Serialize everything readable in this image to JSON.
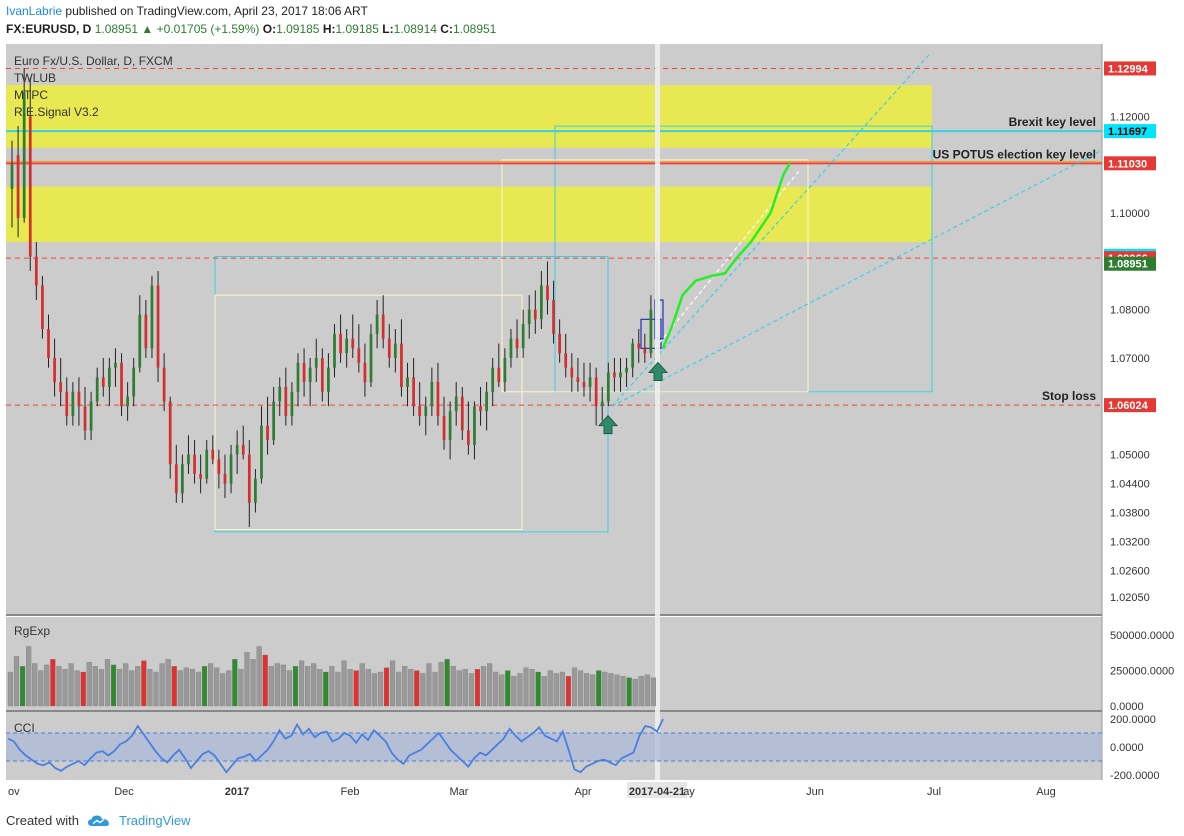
{
  "header": {
    "author": "IvanLabrie",
    "published": "published on TradingView.com, April 23, 2017 18:06 ART",
    "symbol": "FX:EURUSD, D",
    "last": "1.08951",
    "change": "+0.01705 (+1.59%)",
    "open_label": "O:",
    "open": "1.09185",
    "high_label": "H:",
    "high": "1.09185",
    "low_label": "L:",
    "low": "1.08914",
    "close_label": "C:",
    "close": "1.08951"
  },
  "legend": {
    "instrument": "Euro Fx/U.S. Dollar, D, FXCM",
    "indicators": [
      "TWLUB",
      "MTPC",
      "R.E.Signal V3.2"
    ]
  },
  "footer": {
    "created_with": "Created with",
    "brand": "TradingView"
  },
  "colors": {
    "up": "#2e7d32",
    "down": "#d32f2f",
    "zone": "#ecec3c",
    "cyan": "#37d1e1",
    "key_red": "#f44336",
    "green_path": "#24ef24",
    "cci": "#4a7fe0"
  },
  "chart_data": [
    {
      "type": "candlestick",
      "title": "Euro Fx/U.S. Dollar, D, FXCM",
      "y_ticks": [
        1.12,
        1.11,
        1.1,
        1.08,
        1.07,
        1.05,
        1.044,
        1.038,
        1.032,
        1.026,
        1.0205
      ],
      "y_tick_labels": [
        "1.12000",
        "1.11000",
        "1.10000",
        "1.08000",
        "1.07000",
        "1.05000",
        "1.04400",
        "1.03800",
        "1.03200",
        "1.02600",
        "1.02050"
      ],
      "x_tick_labels": [
        "ov",
        "Dec",
        "2017",
        "Feb",
        "Mar",
        "Apr",
        "2017-04-21",
        "ay",
        "Jun",
        "Jul",
        "Aug"
      ],
      "price_labels": [
        {
          "text": "1.12994",
          "value": 1.12994,
          "kind": "red"
        },
        {
          "text": "1.11697",
          "value": 1.11697,
          "kind": "cyan"
        },
        {
          "text": "1.11030",
          "value": 1.1103,
          "kind": "red"
        },
        {
          "text": "1.09115",
          "value": 1.09115,
          "kind": "cyan"
        },
        {
          "text": "1.09066",
          "value": 1.09066,
          "kind": "red"
        },
        {
          "text": "1.08951",
          "value": 1.08951,
          "kind": "green"
        },
        {
          "text": "1.06024",
          "value": 1.06024,
          "kind": "red"
        }
      ],
      "annotations": [
        {
          "text": "Brexit key level",
          "value": 1.11697
        },
        {
          "text": "US POTUS election key level",
          "value": 1.1103
        },
        {
          "text": "Stop loss",
          "value": 1.06024
        }
      ],
      "zones": [
        [
          1.1135,
          1.1265
        ],
        [
          1.094,
          1.1055
        ]
      ],
      "lines": [
        {
          "value": 1.12994,
          "style": "dashed",
          "color": "red"
        },
        {
          "value": 1.11697,
          "style": "solid",
          "color": "cyan"
        },
        {
          "value": 1.1103,
          "style": "solid",
          "color": "red"
        },
        {
          "value": 1.09066,
          "style": "dashed",
          "color": "red"
        },
        {
          "value": 1.06024,
          "style": "dashed",
          "color": "red"
        }
      ],
      "candles": [
        [
          1.105,
          1.115,
          1.097,
          1.11
        ],
        [
          1.112,
          1.118,
          1.095,
          1.099
        ],
        [
          1.099,
          1.13,
          1.098,
          1.125
        ],
        [
          1.12,
          1.128,
          1.088,
          1.091
        ],
        [
          1.091,
          1.094,
          1.082,
          1.085
        ],
        [
          1.085,
          1.087,
          1.074,
          1.076
        ],
        [
          1.076,
          1.079,
          1.068,
          1.07
        ],
        [
          1.07,
          1.074,
          1.062,
          1.065
        ],
        [
          1.065,
          1.07,
          1.06,
          1.063
        ],
        [
          1.063,
          1.066,
          1.056,
          1.058
        ],
        [
          1.058,
          1.065,
          1.056,
          1.063
        ],
        [
          1.063,
          1.066,
          1.056,
          1.06
        ],
        [
          1.06,
          1.064,
          1.053,
          1.055
        ],
        [
          1.055,
          1.063,
          1.053,
          1.061
        ],
        [
          1.061,
          1.068,
          1.06,
          1.066
        ],
        [
          1.066,
          1.07,
          1.062,
          1.064
        ],
        [
          1.064,
          1.07,
          1.06,
          1.068
        ],
        [
          1.068,
          1.072,
          1.064,
          1.069
        ],
        [
          1.069,
          1.071,
          1.058,
          1.06
        ],
        [
          1.06,
          1.065,
          1.057,
          1.062
        ],
        [
          1.062,
          1.07,
          1.06,
          1.068
        ],
        [
          1.068,
          1.083,
          1.067,
          1.079
        ],
        [
          1.079,
          1.082,
          1.07,
          1.072
        ],
        [
          1.072,
          1.087,
          1.07,
          1.085
        ],
        [
          1.085,
          1.088,
          1.065,
          1.068
        ],
        [
          1.068,
          1.071,
          1.059,
          1.061
        ],
        [
          1.061,
          1.062,
          1.045,
          1.048
        ],
        [
          1.048,
          1.052,
          1.04,
          1.042
        ],
        [
          1.042,
          1.05,
          1.04,
          1.048
        ],
        [
          1.048,
          1.054,
          1.046,
          1.05
        ],
        [
          1.05,
          1.053,
          1.044,
          1.046
        ],
        [
          1.046,
          1.05,
          1.042,
          1.045
        ],
        [
          1.045,
          1.053,
          1.044,
          1.051
        ],
        [
          1.051,
          1.054,
          1.048,
          1.049
        ],
        [
          1.049,
          1.051,
          1.043,
          1.046
        ],
        [
          1.046,
          1.05,
          1.041,
          1.044
        ],
        [
          1.044,
          1.052,
          1.042,
          1.05
        ],
        [
          1.05,
          1.055,
          1.046,
          1.052
        ],
        [
          1.052,
          1.056,
          1.049,
          1.05
        ],
        [
          1.05,
          1.053,
          1.035,
          1.04
        ],
        [
          1.04,
          1.047,
          1.038,
          1.045
        ],
        [
          1.045,
          1.06,
          1.044,
          1.056
        ],
        [
          1.056,
          1.062,
          1.05,
          1.053
        ],
        [
          1.053,
          1.064,
          1.052,
          1.061
        ],
        [
          1.061,
          1.066,
          1.058,
          1.064
        ],
        [
          1.064,
          1.068,
          1.056,
          1.058
        ],
        [
          1.058,
          1.065,
          1.056,
          1.063
        ],
        [
          1.063,
          1.071,
          1.06,
          1.069
        ],
        [
          1.069,
          1.072,
          1.062,
          1.065
        ],
        [
          1.065,
          1.07,
          1.06,
          1.068
        ],
        [
          1.068,
          1.074,
          1.065,
          1.07
        ],
        [
          1.07,
          1.072,
          1.061,
          1.063
        ],
        [
          1.063,
          1.071,
          1.06,
          1.068
        ],
        [
          1.068,
          1.077,
          1.066,
          1.075
        ],
        [
          1.075,
          1.079,
          1.069,
          1.071
        ],
        [
          1.071,
          1.076,
          1.068,
          1.074
        ],
        [
          1.074,
          1.079,
          1.07,
          1.072
        ],
        [
          1.072,
          1.077,
          1.067,
          1.069
        ],
        [
          1.069,
          1.073,
          1.062,
          1.065
        ],
        [
          1.065,
          1.077,
          1.064,
          1.075
        ],
        [
          1.075,
          1.082,
          1.072,
          1.079
        ],
        [
          1.079,
          1.083,
          1.072,
          1.074
        ],
        [
          1.074,
          1.077,
          1.068,
          1.07
        ],
        [
          1.07,
          1.076,
          1.067,
          1.073
        ],
        [
          1.073,
          1.078,
          1.062,
          1.064
        ],
        [
          1.064,
          1.069,
          1.06,
          1.066
        ],
        [
          1.066,
          1.07,
          1.058,
          1.06
        ],
        [
          1.06,
          1.065,
          1.056,
          1.058
        ],
        [
          1.058,
          1.062,
          1.054,
          1.06
        ],
        [
          1.06,
          1.068,
          1.058,
          1.065
        ],
        [
          1.065,
          1.069,
          1.056,
          1.058
        ],
        [
          1.058,
          1.062,
          1.051,
          1.053
        ],
        [
          1.053,
          1.061,
          1.049,
          1.059
        ],
        [
          1.059,
          1.065,
          1.056,
          1.062
        ],
        [
          1.062,
          1.064,
          1.053,
          1.055
        ],
        [
          1.055,
          1.061,
          1.05,
          1.052
        ],
        [
          1.052,
          1.061,
          1.049,
          1.06
        ],
        [
          1.06,
          1.064,
          1.056,
          1.059
        ],
        [
          1.059,
          1.065,
          1.055,
          1.063
        ],
        [
          1.063,
          1.07,
          1.06,
          1.068
        ],
        [
          1.068,
          1.073,
          1.064,
          1.065
        ],
        [
          1.065,
          1.072,
          1.063,
          1.07
        ],
        [
          1.07,
          1.076,
          1.068,
          1.074
        ],
        [
          1.074,
          1.078,
          1.07,
          1.072
        ],
        [
          1.072,
          1.08,
          1.07,
          1.077
        ],
        [
          1.077,
          1.083,
          1.074,
          1.08
        ],
        [
          1.08,
          1.084,
          1.075,
          1.078
        ],
        [
          1.078,
          1.088,
          1.076,
          1.085
        ],
        [
          1.085,
          1.09,
          1.079,
          1.082
        ],
        [
          1.082,
          1.086,
          1.073,
          1.075
        ],
        [
          1.075,
          1.078,
          1.069,
          1.071
        ],
        [
          1.071,
          1.075,
          1.066,
          1.068
        ],
        [
          1.068,
          1.071,
          1.063,
          1.066
        ],
        [
          1.066,
          1.07,
          1.063,
          1.065
        ],
        [
          1.065,
          1.069,
          1.062,
          1.064
        ],
        [
          1.064,
          1.069,
          1.061,
          1.066
        ],
        [
          1.066,
          1.068,
          1.056,
          1.06
        ],
        [
          1.06,
          1.064,
          1.057,
          1.061
        ],
        [
          1.061,
          1.069,
          1.06,
          1.067
        ],
        [
          1.067,
          1.07,
          1.063,
          1.066
        ],
        [
          1.066,
          1.07,
          1.063,
          1.067
        ],
        [
          1.067,
          1.07,
          1.064,
          1.068
        ],
        [
          1.068,
          1.074,
          1.066,
          1.073
        ],
        [
          1.073,
          1.076,
          1.069,
          1.072
        ],
        [
          1.072,
          1.075,
          1.069,
          1.071
        ],
        [
          1.071,
          1.083,
          1.07,
          1.08
        ],
        [
          1.08,
          1.092,
          1.079,
          1.0895
        ]
      ],
      "projection": [
        [
          1.072,
          0
        ],
        [
          1.077,
          6
        ],
        [
          1.083,
          12
        ],
        [
          1.086,
          20
        ],
        [
          1.087,
          30
        ],
        [
          1.0875,
          38
        ],
        [
          1.091,
          46
        ],
        [
          1.094,
          54
        ],
        [
          1.097,
          60
        ],
        [
          1.1,
          66
        ],
        [
          1.104,
          70
        ],
        [
          1.108,
          74
        ],
        [
          1.1103,
          78
        ]
      ]
    },
    {
      "type": "bar",
      "title": "RgExp",
      "y_tick_labels": [
        "500000.0000",
        "250000.0000",
        "0.0000"
      ],
      "ylim": [
        0,
        600000
      ],
      "values": [
        240000,
        350000,
        280000,
        420000,
        300000,
        250000,
        290000,
        330000,
        280000,
        260000,
        300000,
        250000,
        240000,
        310000,
        280000,
        260000,
        330000,
        290000,
        260000,
        300000,
        250000,
        280000,
        320000,
        260000,
        240000,
        300000,
        330000,
        280000,
        250000,
        270000,
        260000,
        240000,
        280000,
        300000,
        270000,
        230000,
        250000,
        330000,
        260000,
        380000,
        330000,
        420000,
        360000,
        280000,
        300000,
        290000,
        250000,
        280000,
        320000,
        280000,
        300000,
        260000,
        240000,
        280000,
        240000,
        320000,
        260000,
        250000,
        300000,
        260000,
        230000,
        240000,
        270000,
        320000,
        240000,
        280000,
        260000,
        250000,
        230000,
        300000,
        240000,
        310000,
        330000,
        280000,
        250000,
        260000,
        230000,
        260000,
        280000,
        300000,
        240000,
        220000,
        250000,
        210000,
        230000,
        270000,
        260000,
        240000,
        210000,
        250000,
        230000,
        240000,
        210000,
        270000,
        250000,
        230000,
        220000,
        250000,
        240000,
        230000,
        220000,
        210000,
        200000,
        190000,
        210000,
        220000,
        200000
      ]
    },
    {
      "type": "line",
      "title": "CCI",
      "y_tick_labels": [
        "200.0000",
        "0.0000",
        "-200.0000"
      ],
      "ylim": [
        -200,
        200
      ],
      "values": [
        60,
        40,
        -20,
        -60,
        -90,
        -120,
        -130,
        -110,
        -150,
        -170,
        -140,
        -120,
        -100,
        -130,
        -80,
        -40,
        -30,
        -60,
        -30,
        20,
        40,
        80,
        150,
        90,
        30,
        -30,
        -80,
        -110,
        -60,
        -20,
        -80,
        -150,
        -100,
        -50,
        -30,
        -60,
        -120,
        -180,
        -130,
        -80,
        -70,
        -50,
        -100,
        -60,
        -20,
        40,
        120,
        60,
        80,
        160,
        90,
        130,
        70,
        100,
        110,
        40,
        60,
        100,
        80,
        30,
        90,
        50,
        120,
        80,
        40,
        -40,
        -90,
        -120,
        -60,
        -40,
        -20,
        20,
        60,
        100,
        40,
        -20,
        -60,
        -100,
        -140,
        -80,
        -40,
        -60,
        -20,
        20,
        60,
        130,
        80,
        40,
        70,
        100,
        140,
        80,
        60,
        40,
        110,
        -20,
        -160,
        -180,
        -140,
        -120,
        -100,
        -90,
        -110,
        -130,
        -80,
        -60,
        -40,
        80,
        150,
        140,
        110,
        200
      ]
    }
  ]
}
